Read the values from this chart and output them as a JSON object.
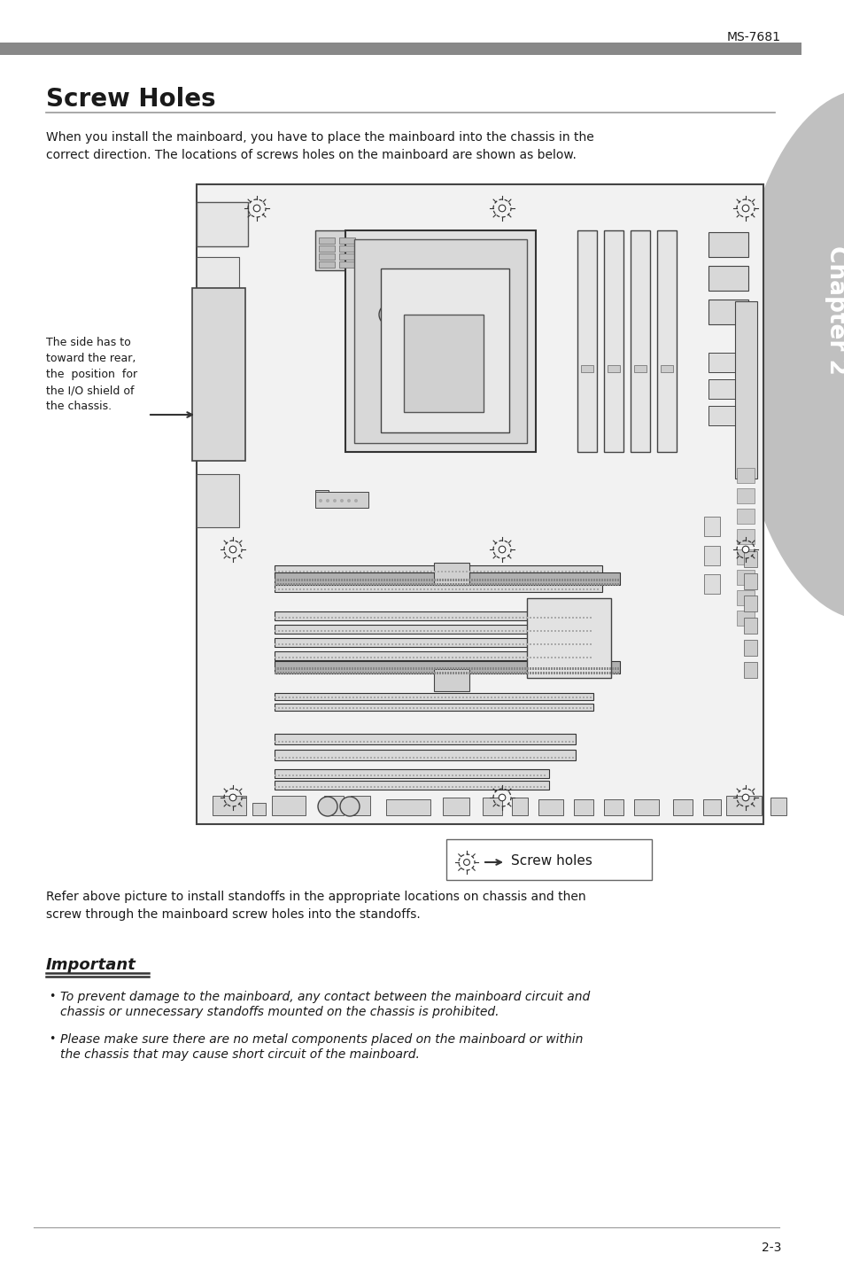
{
  "page_header_text": "MS-7681",
  "header_bar_color": "#888888",
  "title": "Screw Holes",
  "intro_text": "When you install the mainboard, you have to place the mainboard into the chassis in the\ncorrect direction. The locations of screws holes on the mainboard are shown as below.",
  "side_note_line1": "The side has to",
  "side_note_line2": "toward the rear,",
  "side_note_line3": "the  position  for",
  "side_note_line4": "the I/O shield of",
  "side_note_line5": "the chassis.",
  "legend_text": "Screw holes",
  "refer_text": "Refer above picture to install standoffs in the appropriate locations on chassis and then\nscrew through the mainboard screw holes into the standoffs.",
  "important_title": "Important",
  "bullet1_line1": "To prevent damage to the mainboard, any contact between the mainboard circuit and",
  "bullet1_line2": "chassis or unnecessary standoffs mounted on the chassis is prohibited.",
  "bullet2_line1": "Please make sure there are no metal components placed on the mainboard or within",
  "bullet2_line2": "the chassis that may cause short circuit of the mainboard.",
  "page_number": "2-3",
  "chapter_text": "Chapter 2",
  "bg_color": "#ffffff",
  "text_color": "#1a1a1a",
  "gray_color": "#999999",
  "dark_gray": "#555555",
  "tab_color": "#c0c0c0",
  "board_bg": "#f0f0f0",
  "board_edge": "#444444"
}
